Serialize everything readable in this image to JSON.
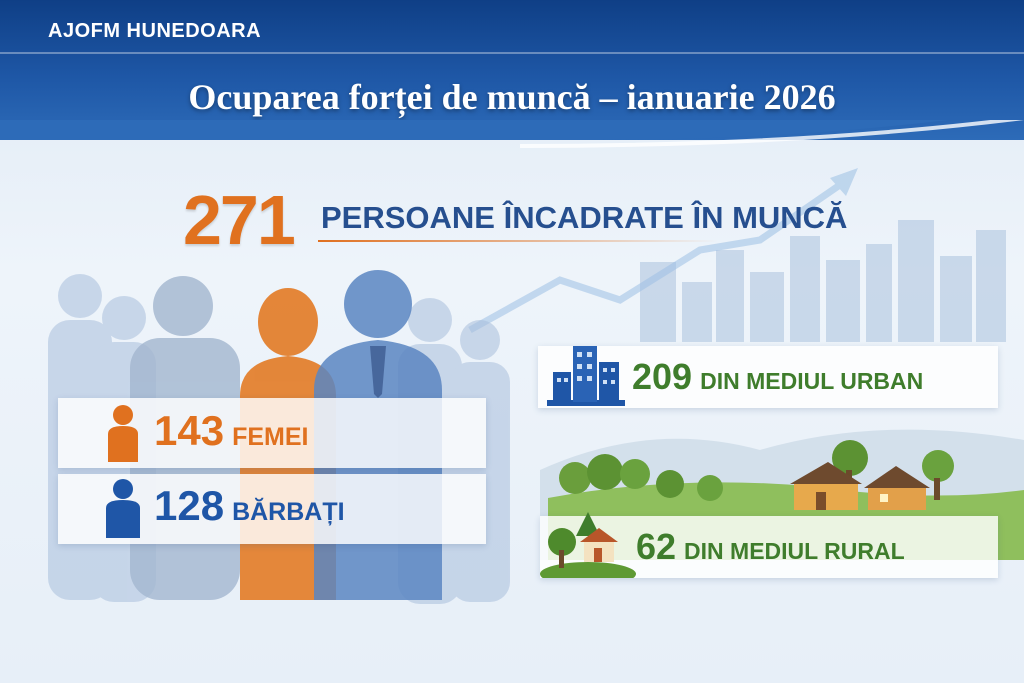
{
  "header": {
    "organization": "AJOFM HUNEDOARA",
    "title": "Ocuparea forței de muncă – ianuarie 2026"
  },
  "total": {
    "value": "271",
    "label": "PERSOANE ÎNCADRATE ÎN MUNCĂ"
  },
  "gender": [
    {
      "value": "143",
      "label": "FEMEI",
      "icon": "woman-icon",
      "color": "#e0711f"
    },
    {
      "value": "128",
      "label": "BĂRBAȚI",
      "icon": "man-icon",
      "color": "#1f56a7"
    }
  ],
  "area": [
    {
      "value": "209",
      "label": "DIN MEDIUL URBAN",
      "icon": "city-buildings-icon",
      "color": "#3f7d2c"
    },
    {
      "value": "62",
      "label": "DIN MEDIUL RURAL",
      "icon": "rural-house-icon",
      "color": "#3f7d2c"
    }
  ]
}
